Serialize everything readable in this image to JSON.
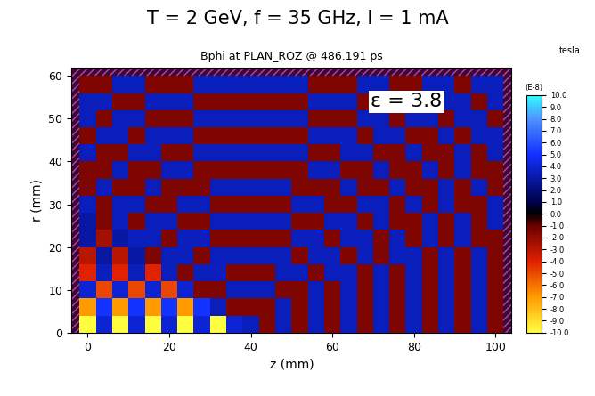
{
  "chart_data": {
    "type": "heatmap",
    "title": "T = 2 GeV, f = 35 GHz, I = 1 mA",
    "subtitle": "Bphi at PLAN_ROZ @ 486.191 ps",
    "x_label": "z (mm)",
    "y_label": "r (mm)",
    "annotations": [
      "ε = 3.8"
    ],
    "xlim": [
      -4,
      104
    ],
    "ylim": [
      0,
      62
    ],
    "xticks": [
      0,
      20,
      40,
      60,
      80,
      100
    ],
    "yticks": [
      0,
      10,
      20,
      30,
      40,
      50,
      60
    ],
    "x": [
      0,
      4,
      8,
      12,
      16,
      20,
      24,
      28,
      32,
      36,
      40,
      44,
      48,
      52,
      56,
      60,
      64,
      68,
      72,
      76,
      80,
      84,
      88,
      92,
      96,
      100
    ],
    "y": [
      2,
      6,
      10,
      14,
      18,
      22,
      26,
      30,
      34,
      38,
      42,
      46,
      50,
      54,
      58
    ],
    "cells": [
      [
        -10,
        4,
        -10,
        4,
        -10,
        4,
        -10,
        4,
        -10,
        4,
        3.5,
        -1.5,
        3.5,
        -1.5,
        3.5,
        -1.5,
        3.5,
        -1.5,
        3.5,
        -1.5,
        3.5,
        -1.5,
        3.5,
        -1.5,
        3.5,
        -1.5
      ],
      [
        -7,
        5,
        -7,
        5,
        -7,
        5,
        -7,
        5,
        3.5,
        -1.5,
        -1.5,
        -1.5,
        3.5,
        -1.5,
        3.5,
        -1.5,
        3.5,
        -1.5,
        3.5,
        -1.5,
        3.5,
        -1.5,
        3.5,
        -1.5,
        3.5,
        -1.5
      ],
      [
        4,
        -5,
        4,
        -5,
        4,
        -5,
        4,
        -1.5,
        -1.5,
        3.5,
        3.5,
        3.5,
        -1.5,
        -1.5,
        3.5,
        -1.5,
        3.5,
        -1.5,
        3.5,
        -1.5,
        3.5,
        -1.5,
        3.5,
        -1.5,
        3.5,
        -1.5
      ],
      [
        -4,
        3.5,
        -4,
        3.5,
        -4,
        3.5,
        -1.5,
        3.5,
        3.5,
        -1.5,
        -1.5,
        -1.5,
        3.5,
        3.5,
        -1.5,
        3.5,
        3.5,
        -1.5,
        3.5,
        -1.5,
        3.5,
        -1.5,
        3.5,
        -1.5,
        3.5,
        -1.5
      ],
      [
        -3,
        3,
        -3,
        3,
        -1.5,
        3.5,
        3.5,
        -1.5,
        3.5,
        3.5,
        3.5,
        3.5,
        3.5,
        -1.5,
        3.5,
        3.5,
        -1.5,
        3.5,
        -1.5,
        3.5,
        3.5,
        -1.5,
        3.5,
        -1.5,
        3.5,
        -1.5
      ],
      [
        3,
        -2.5,
        3,
        3.5,
        3.5,
        -1.5,
        3.5,
        3.5,
        -1.5,
        -1.5,
        -1.5,
        -1.5,
        -1.5,
        3.5,
        3.5,
        -1.5,
        3.5,
        3.5,
        -1.5,
        3.5,
        -1.5,
        3.5,
        -1.5,
        3.5,
        -1.5,
        -1.5
      ],
      [
        3,
        -1.5,
        3.5,
        -1.5,
        3.5,
        3.5,
        -1.5,
        -1.5,
        3.5,
        3.5,
        3.5,
        3.5,
        3.5,
        -1.5,
        -1.5,
        3.5,
        3.5,
        -1.5,
        3.5,
        -1.5,
        -1.5,
        3.5,
        -1.5,
        3.5,
        -1.5,
        3.5
      ],
      [
        3.5,
        -1.5,
        3.5,
        3.5,
        -1.5,
        -1.5,
        3.5,
        3.5,
        -1.5,
        -1.5,
        -1.5,
        -1.5,
        -1.5,
        3.5,
        3.5,
        -1.5,
        -1.5,
        3.5,
        3.5,
        -1.5,
        3.5,
        -1.5,
        3.5,
        -1.5,
        -1.5,
        3.5
      ],
      [
        -1.5,
        3.5,
        -1.5,
        -1.5,
        3.5,
        -1.5,
        -1.5,
        -1.5,
        3.5,
        3.5,
        3.5,
        3.5,
        3.5,
        -1.5,
        -1.5,
        -1.5,
        3.5,
        -1.5,
        -1.5,
        3.5,
        -1.5,
        -1.5,
        3.5,
        -1.5,
        3.5,
        -1.5
      ],
      [
        -1.5,
        -1.5,
        3.5,
        -1.5,
        -1.5,
        3.5,
        3.5,
        -1.5,
        -1.5,
        -1.5,
        -1.5,
        -1.5,
        -1.5,
        -1.5,
        3.5,
        3.5,
        -1.5,
        -1.5,
        3.5,
        -1.5,
        -1.5,
        3.5,
        -1.5,
        3.5,
        -1.5,
        -1.5
      ],
      [
        3.5,
        -1.5,
        -1.5,
        3.5,
        3.5,
        -1.5,
        -1.5,
        3.5,
        3.5,
        3.5,
        3.5,
        3.5,
        3.5,
        3.5,
        -1.5,
        -1.5,
        3.5,
        3.5,
        -1.5,
        -1.5,
        3.5,
        -1.5,
        -1.5,
        3.5,
        -1.5,
        3.5
      ],
      [
        -1.5,
        3.5,
        3.5,
        -1.5,
        3.5,
        3.5,
        3.5,
        -1.5,
        -1.5,
        -1.5,
        -1.5,
        -1.5,
        -1.5,
        -1.5,
        3.5,
        3.5,
        3.5,
        -1.5,
        3.5,
        3.5,
        -1.5,
        -1.5,
        3.5,
        -1.5,
        3.5,
        3.5
      ],
      [
        3.5,
        -1.5,
        3.5,
        3.5,
        -1.5,
        -1.5,
        -1.5,
        3.5,
        3.5,
        3.5,
        3.5,
        3.5,
        3.5,
        3.5,
        -1.5,
        -1.5,
        -1.5,
        3.5,
        3.5,
        -1.5,
        3.5,
        3.5,
        -1.5,
        3.5,
        3.5,
        -1.5
      ],
      [
        3.5,
        3.5,
        -1.5,
        -1.5,
        3.5,
        3.5,
        3.5,
        -1.5,
        -1.5,
        -1.5,
        -1.5,
        -1.5,
        -1.5,
        -1.5,
        3.5,
        3.5,
        3.5,
        -1.5,
        -1.5,
        3.5,
        3.5,
        -1.5,
        3.5,
        3.5,
        -1.5,
        3.5
      ],
      [
        -1.5,
        -1.5,
        3.5,
        3.5,
        -1.5,
        -1.5,
        -1.5,
        3.5,
        3.5,
        3.5,
        3.5,
        3.5,
        3.5,
        3.5,
        -1.5,
        -1.5,
        -1.5,
        3.5,
        3.5,
        -1.5,
        -1.5,
        3.5,
        3.5,
        -1.5,
        3.5,
        3.5
      ]
    ],
    "colorbar": {
      "range": [
        -10,
        10
      ],
      "unit": "tesla",
      "label": "(E-8)",
      "ticks": [
        {
          "value": 10,
          "label": "10.0"
        },
        {
          "value": 9,
          "label": "9.0"
        },
        {
          "value": 8,
          "label": "8.0"
        },
        {
          "value": 7,
          "label": "7.0"
        },
        {
          "value": 6,
          "label": "6.0"
        },
        {
          "value": 5,
          "label": "5.0"
        },
        {
          "value": 4,
          "label": "4.0"
        },
        {
          "value": 3,
          "label": "3.0"
        },
        {
          "value": 2,
          "label": "2.0"
        },
        {
          "value": 1,
          "label": "1.0"
        },
        {
          "value": 0,
          "label": "0.0"
        },
        {
          "value": -1,
          "label": "-1.0"
        },
        {
          "value": -2,
          "label": "-2.0"
        },
        {
          "value": -3,
          "label": "-3.0"
        },
        {
          "value": -4,
          "label": "-4.0"
        },
        {
          "value": -5,
          "label": "-5.0"
        },
        {
          "value": -6,
          "label": "-6.0"
        },
        {
          "value": -7,
          "label": "-7.0"
        },
        {
          "value": -8,
          "label": "-8.0"
        },
        {
          "value": -9,
          "label": "-9.0"
        },
        {
          "value": -10,
          "label": "-10.0"
        }
      ]
    }
  }
}
